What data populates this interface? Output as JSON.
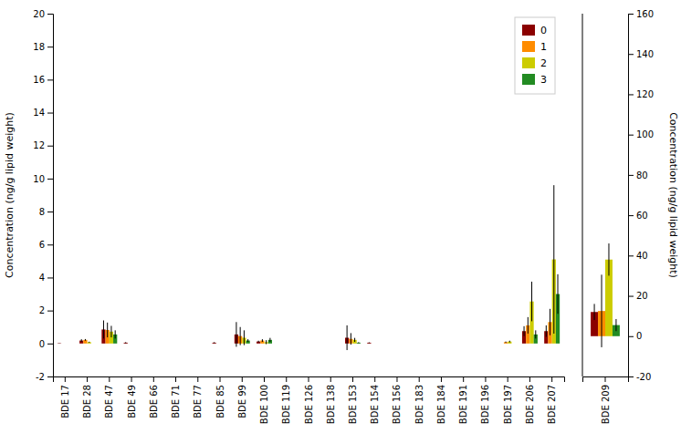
{
  "chart_data": [
    {
      "type": "bar",
      "categories": [
        "BDE 17",
        "BDE 28",
        "BDE 47",
        "BDE 49",
        "BDE 66",
        "BDE 71",
        "BDE 77",
        "BDE 85",
        "BDE 99",
        "BDE 100",
        "BDE 119",
        "BDE 126",
        "BDE 138",
        "BDE 153",
        "BDE 154",
        "BDE 156",
        "BDE 183",
        "BDE 184",
        "BDE 191",
        "BDE 196",
        "BDE 197",
        "BDE 206",
        "BDE 207"
      ],
      "ylabel": "Concentration (ng/g lipid weight)",
      "ylim": [
        -2,
        20
      ],
      "yticks": [
        -2,
        0,
        2,
        4,
        6,
        8,
        10,
        12,
        14,
        16,
        18,
        20
      ],
      "grid": false,
      "legend": "upper right",
      "series": [
        {
          "name": "0",
          "color": "#8B0000",
          "values": [
            0.02,
            0.18,
            0.85,
            0.05,
            0.0,
            0.0,
            0.0,
            0.05,
            0.55,
            0.12,
            0.0,
            0.0,
            0.0,
            0.35,
            0.05,
            0.0,
            0.0,
            0.0,
            0.0,
            0.0,
            0.0,
            0.75,
            0.75
          ],
          "errors": [
            0.01,
            0.08,
            0.55,
            0.03,
            0.0,
            0.0,
            0.0,
            0.03,
            0.75,
            0.05,
            0.0,
            0.0,
            0.0,
            0.75,
            0.02,
            0.0,
            0.0,
            0.0,
            0.0,
            0.0,
            0.0,
            0.3,
            0.35
          ]
        },
        {
          "name": "1",
          "color": "#FF8C00",
          "values": [
            0.0,
            0.22,
            0.82,
            0.0,
            0.0,
            0.0,
            0.0,
            0.0,
            0.45,
            0.18,
            0.0,
            0.0,
            0.0,
            0.28,
            0.0,
            0.0,
            0.0,
            0.0,
            0.0,
            0.0,
            0.08,
            1.1,
            1.3
          ],
          "errors": [
            0.0,
            0.05,
            0.45,
            0.0,
            0.0,
            0.0,
            0.0,
            0.0,
            0.55,
            0.08,
            0.0,
            0.0,
            0.0,
            0.35,
            0.0,
            0.0,
            0.0,
            0.0,
            0.0,
            0.0,
            0.04,
            0.5,
            0.8
          ]
        },
        {
          "name": "2",
          "color": "#CCCC00",
          "values": [
            0.0,
            0.08,
            0.72,
            0.0,
            0.0,
            0.0,
            0.0,
            0.0,
            0.35,
            0.08,
            0.0,
            0.0,
            0.0,
            0.22,
            0.0,
            0.0,
            0.0,
            0.0,
            0.0,
            0.0,
            0.12,
            2.55,
            5.1
          ],
          "errors": [
            0.0,
            0.03,
            0.35,
            0.0,
            0.0,
            0.0,
            0.0,
            0.0,
            0.45,
            0.12,
            0.0,
            0.0,
            0.0,
            0.12,
            0.0,
            0.0,
            0.0,
            0.0,
            0.0,
            0.0,
            0.05,
            1.2,
            4.5
          ]
        },
        {
          "name": "3",
          "color": "#228B22",
          "values": [
            0.0,
            0.0,
            0.55,
            0.0,
            0.0,
            0.0,
            0.0,
            0.0,
            0.18,
            0.22,
            0.0,
            0.0,
            0.0,
            0.05,
            0.0,
            0.0,
            0.0,
            0.0,
            0.0,
            0.0,
            0.0,
            0.55,
            3.0
          ],
          "errors": [
            0.0,
            0.0,
            0.25,
            0.0,
            0.0,
            0.0,
            0.0,
            0.0,
            0.08,
            0.12,
            0.0,
            0.0,
            0.0,
            0.03,
            0.0,
            0.0,
            0.0,
            0.0,
            0.0,
            0.0,
            0.0,
            0.25,
            1.2
          ]
        }
      ]
    },
    {
      "type": "bar",
      "categories": [
        "BDE 209"
      ],
      "ylabel": "Concentration (ng/g lipid weight)",
      "ylim": [
        -20,
        160
      ],
      "yticks": [
        -20,
        0,
        20,
        40,
        60,
        80,
        100,
        120,
        140,
        160
      ],
      "grid": false,
      "series": [
        {
          "color": "#8B0000",
          "values": [
            12.0
          ],
          "errors": [
            4.0
          ]
        },
        {
          "color": "#FF8C00",
          "values": [
            12.5
          ],
          "errors": [
            18.0
          ]
        },
        {
          "color": "#CCCC00",
          "values": [
            38.0
          ],
          "errors": [
            8.0
          ]
        },
        {
          "color": "#228B22",
          "values": [
            5.5
          ],
          "errors": [
            3.0
          ]
        }
      ]
    }
  ]
}
